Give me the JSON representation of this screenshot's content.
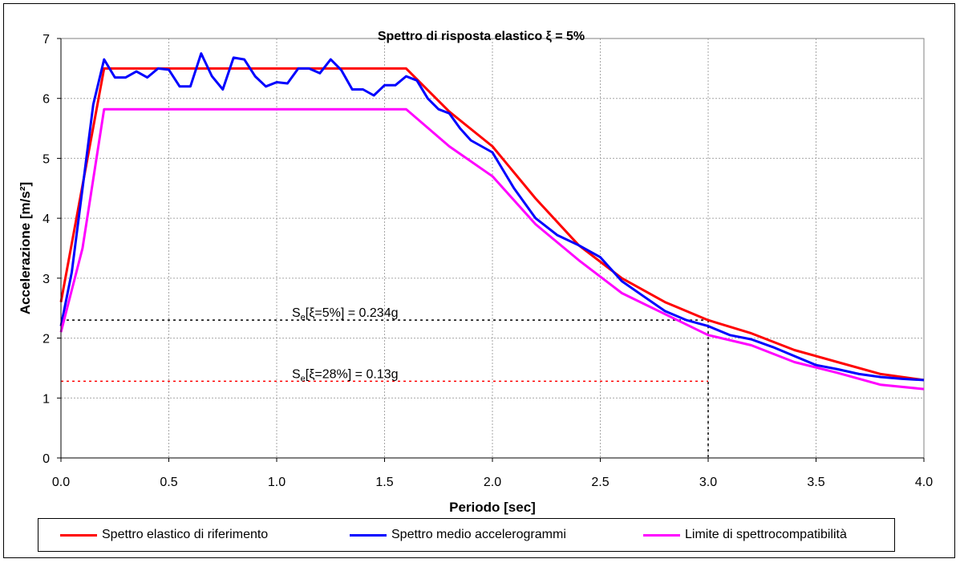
{
  "chart_data": {
    "type": "line",
    "title": "Spettro di risposta elastico ξ = 5%",
    "xlabel": "Periodo [sec]",
    "ylabel": "Accelerazione [m/s²]",
    "xlim": [
      0,
      4
    ],
    "ylim": [
      0,
      7
    ],
    "x_ticks": [
      "0.0",
      "0.5",
      "1.0",
      "1.5",
      "2.0",
      "2.5",
      "3.0",
      "3.5",
      "4.0"
    ],
    "y_ticks": [
      "0",
      "1",
      "2",
      "3",
      "4",
      "5",
      "6",
      "7"
    ],
    "grid": true,
    "legend_position": "bottom",
    "series": [
      {
        "name": "Spettro elastico di riferimento",
        "color": "#ff0000",
        "points": [
          [
            0,
            2.6
          ],
          [
            0.2,
            6.5
          ],
          [
            1.6,
            6.5
          ],
          [
            1.8,
            5.78
          ],
          [
            2.0,
            5.2
          ],
          [
            2.2,
            4.33
          ],
          [
            2.4,
            3.55
          ],
          [
            2.6,
            3.0
          ],
          [
            2.8,
            2.6
          ],
          [
            3.0,
            2.3
          ],
          [
            3.2,
            2.08
          ],
          [
            3.4,
            1.8
          ],
          [
            3.6,
            1.6
          ],
          [
            3.8,
            1.4
          ],
          [
            4.0,
            1.3
          ]
        ]
      },
      {
        "name": "Spettro medio accelerogrammi",
        "color": "#0000ff",
        "points": [
          [
            0,
            2.2
          ],
          [
            0.05,
            3.1
          ],
          [
            0.1,
            4.5
          ],
          [
            0.15,
            5.9
          ],
          [
            0.2,
            6.65
          ],
          [
            0.25,
            6.35
          ],
          [
            0.3,
            6.35
          ],
          [
            0.35,
            6.45
          ],
          [
            0.4,
            6.35
          ],
          [
            0.45,
            6.5
          ],
          [
            0.5,
            6.48
          ],
          [
            0.55,
            6.2
          ],
          [
            0.6,
            6.2
          ],
          [
            0.65,
            6.75
          ],
          [
            0.7,
            6.37
          ],
          [
            0.75,
            6.15
          ],
          [
            0.8,
            6.68
          ],
          [
            0.85,
            6.65
          ],
          [
            0.9,
            6.37
          ],
          [
            0.95,
            6.2
          ],
          [
            1.0,
            6.27
          ],
          [
            1.05,
            6.25
          ],
          [
            1.1,
            6.5
          ],
          [
            1.15,
            6.5
          ],
          [
            1.2,
            6.42
          ],
          [
            1.25,
            6.65
          ],
          [
            1.3,
            6.47
          ],
          [
            1.35,
            6.15
          ],
          [
            1.4,
            6.15
          ],
          [
            1.45,
            6.05
          ],
          [
            1.5,
            6.22
          ],
          [
            1.55,
            6.22
          ],
          [
            1.6,
            6.37
          ],
          [
            1.65,
            6.3
          ],
          [
            1.7,
            6.0
          ],
          [
            1.75,
            5.82
          ],
          [
            1.8,
            5.75
          ],
          [
            1.85,
            5.5
          ],
          [
            1.9,
            5.3
          ],
          [
            2.0,
            5.1
          ],
          [
            2.1,
            4.5
          ],
          [
            2.2,
            4.0
          ],
          [
            2.3,
            3.72
          ],
          [
            2.4,
            3.55
          ],
          [
            2.5,
            3.35
          ],
          [
            2.55,
            3.15
          ],
          [
            2.6,
            2.95
          ],
          [
            2.7,
            2.7
          ],
          [
            2.8,
            2.45
          ],
          [
            2.9,
            2.3
          ],
          [
            3.0,
            2.2
          ],
          [
            3.1,
            2.05
          ],
          [
            3.2,
            1.98
          ],
          [
            3.3,
            1.85
          ],
          [
            3.4,
            1.7
          ],
          [
            3.5,
            1.55
          ],
          [
            3.6,
            1.48
          ],
          [
            3.7,
            1.4
          ],
          [
            3.8,
            1.35
          ],
          [
            3.9,
            1.32
          ],
          [
            4.0,
            1.3
          ]
        ]
      },
      {
        "name": "Limite di spettrocompatibilità",
        "color": "#ff00ff",
        "points": [
          [
            0,
            2.1
          ],
          [
            0.1,
            3.5
          ],
          [
            0.2,
            5.82
          ],
          [
            1.6,
            5.82
          ],
          [
            1.8,
            5.2
          ],
          [
            2.0,
            4.7
          ],
          [
            2.2,
            3.9
          ],
          [
            2.4,
            3.3
          ],
          [
            2.6,
            2.75
          ],
          [
            2.8,
            2.4
          ],
          [
            3.0,
            2.05
          ],
          [
            3.2,
            1.88
          ],
          [
            3.4,
            1.6
          ],
          [
            3.6,
            1.42
          ],
          [
            3.8,
            1.22
          ],
          [
            4.0,
            1.15
          ]
        ]
      }
    ],
    "annotations": [
      {
        "text": "Se[ξ=5%] = 0.234g",
        "main": "S",
        "sub": "e",
        "rest": "[ξ=5%] = 0.234g",
        "y": 2.3,
        "color": "#000000"
      },
      {
        "text": "Se[ξ=28%] = 0.13g",
        "main": "S",
        "sub": "e",
        "rest": "[ξ=28%] = 0.13g",
        "y": 1.28,
        "color": "#ff0000"
      }
    ],
    "vertical_marker_x": 3.0
  }
}
